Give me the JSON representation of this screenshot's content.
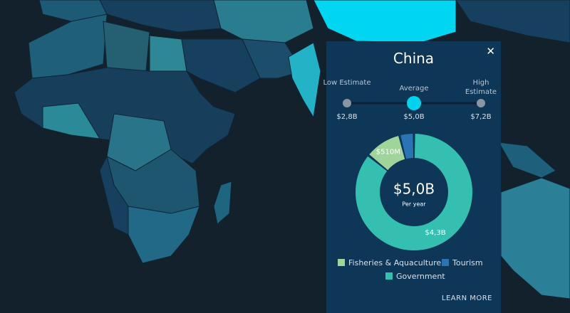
{
  "popup": {
    "title": "China",
    "estimates": [
      {
        "label": "Low Estimate",
        "value": "$2,8B"
      },
      {
        "label": "Average",
        "value": "$5,0B"
      },
      {
        "label": "High Estimate",
        "value": "$7,2B"
      }
    ],
    "link": "LEARN MORE"
  },
  "chart_data": {
    "type": "donut",
    "center_value": "$5,0B",
    "center_label": "Per year",
    "categories": [
      "Government",
      "Fisheries & Aquaculture",
      "Tourism"
    ],
    "values": [
      4.3,
      0.51,
      0.2
    ],
    "value_labels": [
      "$4,3B",
      "$510M",
      null
    ],
    "colors": [
      "#35bfb1",
      "#9fd49a",
      "#2a74b4"
    ]
  }
}
